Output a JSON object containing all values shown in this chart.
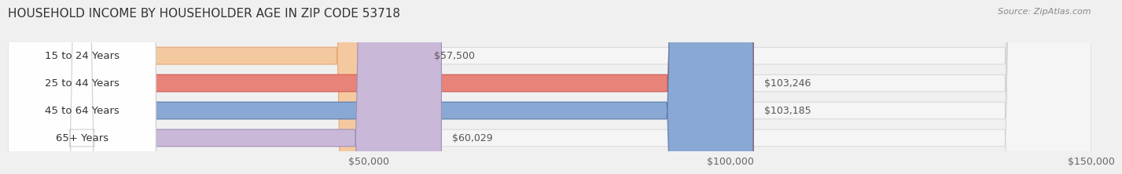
{
  "title": "HOUSEHOLD INCOME BY HOUSEHOLDER AGE IN ZIP CODE 53718",
  "source": "Source: ZipAtlas.com",
  "categories": [
    "15 to 24 Years",
    "25 to 44 Years",
    "45 to 64 Years",
    "65+ Years"
  ],
  "values": [
    57500,
    103246,
    103185,
    60029
  ],
  "bar_colors": [
    "#f5c9a0",
    "#e8837a",
    "#89a8d4",
    "#c9b8d8"
  ],
  "bar_edge_colors": [
    "#e8a870",
    "#d05a50",
    "#5a7aaa",
    "#a090b8"
  ],
  "value_labels": [
    "$57,500",
    "$103,246",
    "$103,185",
    "$60,029"
  ],
  "xlim": [
    0,
    150000
  ],
  "xticks": [
    50000,
    100000,
    150000
  ],
  "xtick_labels": [
    "$50,000",
    "$100,000",
    "$150,000"
  ],
  "background_color": "#f0f0f0",
  "bar_bg_color": "#e8e8e8",
  "title_fontsize": 11,
  "label_fontsize": 9.5,
  "value_fontsize": 9,
  "source_fontsize": 8,
  "bar_height": 0.62,
  "figsize": [
    14.06,
    2.33
  ]
}
